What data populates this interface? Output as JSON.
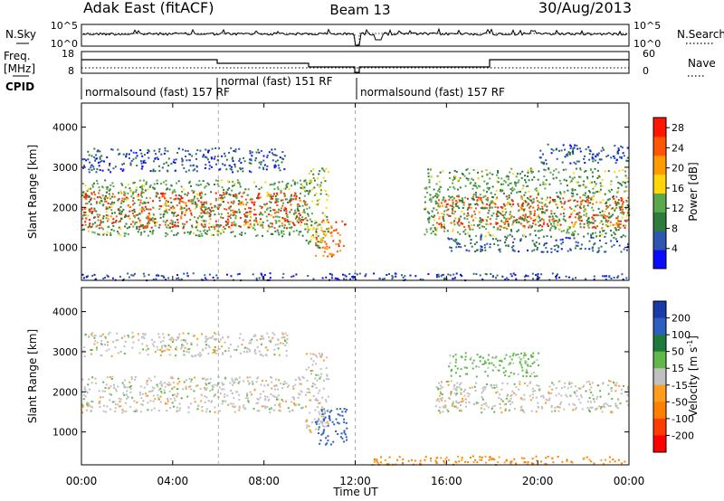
{
  "header": {
    "station": "Adak East (fitACF)",
    "beam": "Beam 13",
    "date": "30/Aug/2013"
  },
  "left_labels": {
    "nsky": "N.Sky",
    "freq_line1": "Freq.",
    "freq_line2": "[MHz]",
    "cpid": "CPID"
  },
  "right_labels": {
    "nsearch": "N.Search",
    "nave": "Nave"
  },
  "noise_panel": {
    "left_ticks": [
      "10^5",
      "10^0"
    ],
    "right_ticks": [
      "10^5",
      "10^0"
    ]
  },
  "freq_panel": {
    "left_ticks": [
      "18",
      "8"
    ],
    "right_ticks": [
      "60",
      "0"
    ]
  },
  "cpid_segments": [
    {
      "label": "normalsound (fast) 157 RF",
      "start_h": 0,
      "end_h": 6
    },
    {
      "label": "normal (fast) 151 RF",
      "start_h": 6,
      "end_h": 12
    },
    {
      "label": "normalsound (fast) 157 RF",
      "start_h": 12,
      "end_h": 24
    }
  ],
  "x_axis": {
    "label": "Time UT",
    "ticks": [
      "00:00",
      "04:00",
      "08:00",
      "12:00",
      "16:00",
      "20:00",
      "00:00"
    ],
    "tick_hours": [
      0,
      4,
      8,
      12,
      16,
      20,
      24
    ]
  },
  "colors": {
    "power": [
      "#0a0aff",
      "#2e55b0",
      "#2e7b3e",
      "#5aa84a",
      "#ffd60a",
      "#ff9a00",
      "#ff5500",
      "#ff1500"
    ],
    "velocity_pos": [
      "#1a3aa8",
      "#2e5ec0",
      "#1e7a3c",
      "#60b84a"
    ],
    "velocity_neg": [
      "#ff9e1e",
      "#ff8000",
      "#ff3c00",
      "#ff0000"
    ],
    "velocity_mid": "#c0c0c0",
    "ground": "#b0b0b0"
  },
  "chart_data": [
    {
      "type": "heatmap",
      "name_panel": "power",
      "ylabel": "Slant Range [km]",
      "xlabel": "",
      "xlim": [
        0,
        24
      ],
      "ylim": [
        180,
        4600
      ],
      "yticks": [
        "1000",
        "2000",
        "3000",
        "4000"
      ],
      "ytick_values": [
        1000,
        2000,
        3000,
        4000
      ],
      "colorbar_label": "Power [dB]",
      "colorbar_ticks": [
        "4",
        "8",
        "12",
        "16",
        "20",
        "24",
        "28"
      ],
      "colorbar_range": [
        0,
        30
      ],
      "regions": [
        {
          "t0": 0.0,
          "t1": 9.9,
          "r0": 1500,
          "r1": 2400,
          "level": 26
        },
        {
          "t0": 0.0,
          "t1": 10.0,
          "r0": 1300,
          "r1": 2700,
          "level": 12
        },
        {
          "t0": 0.0,
          "t1": 9.0,
          "r0": 2900,
          "r1": 3500,
          "level": 6
        },
        {
          "t0": 10.2,
          "t1": 11.6,
          "r0": 800,
          "r1": 1700,
          "level": 24
        },
        {
          "t0": 9.8,
          "t1": 10.8,
          "r0": 1000,
          "r1": 3000,
          "level": 14
        },
        {
          "t0": 15.5,
          "t1": 24.0,
          "r0": 1500,
          "r1": 2300,
          "level": 25
        },
        {
          "t0": 15.0,
          "t1": 24.0,
          "r0": 1300,
          "r1": 3000,
          "level": 12
        },
        {
          "t0": 16.0,
          "t1": 24.0,
          "r0": 900,
          "r1": 1300,
          "level": 7
        },
        {
          "t0": 20.0,
          "t1": 24.0,
          "r0": 3100,
          "r1": 3600,
          "level": 6
        },
        {
          "t0": 0.0,
          "t1": 24.0,
          "r0": 200,
          "r1": 380,
          "level": 5
        }
      ]
    },
    {
      "type": "heatmap",
      "name_panel": "velocity",
      "ylabel": "Slant Range [km]",
      "xlabel": "Time UT",
      "xlim": [
        0,
        24
      ],
      "ylim": [
        180,
        4600
      ],
      "yticks": [
        "1000",
        "2000",
        "3000",
        "4000"
      ],
      "ytick_values": [
        1000,
        2000,
        3000,
        4000
      ],
      "colorbar_label": "Velocity [m s^-1]",
      "colorbar_ticks": [
        "200",
        "100",
        "50",
        "15",
        "-15",
        "-50",
        "-100",
        "-200"
      ],
      "colorbar_range": [
        -250,
        250
      ],
      "regions": [
        {
          "t0": 0.0,
          "t1": 9.9,
          "r0": 1500,
          "r1": 2400,
          "v": 0
        },
        {
          "t0": 0.0,
          "t1": 9.0,
          "r0": 2900,
          "r1": 3500,
          "v": 0
        },
        {
          "t0": 10.2,
          "t1": 11.6,
          "r0": 700,
          "r1": 1650,
          "v": 150
        },
        {
          "t0": 9.8,
          "t1": 10.8,
          "r0": 1000,
          "r1": 3000,
          "v": 0
        },
        {
          "t0": 15.5,
          "t1": 24.0,
          "r0": 1500,
          "r1": 2300,
          "v": 0
        },
        {
          "t0": 16.0,
          "t1": 20.0,
          "r0": 2400,
          "r1": 3000,
          "v": 30
        },
        {
          "t0": 12.5,
          "t1": 24.0,
          "r0": 200,
          "r1": 420,
          "v": -60
        }
      ]
    }
  ]
}
